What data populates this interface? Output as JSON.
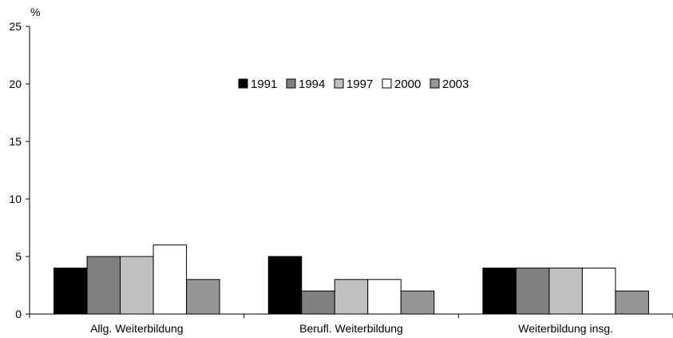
{
  "chart_data": {
    "type": "bar",
    "ylabel": "%",
    "ylim": [
      0,
      25
    ],
    "yticks": [
      0,
      5,
      10,
      15,
      20,
      25
    ],
    "grid": false,
    "legend_position": "top-center",
    "categories": [
      "Allg. Weiterbildung",
      "Berufl. Weiterbildung",
      "Weiterbildung insg."
    ],
    "series": [
      {
        "name": "1991",
        "color": "#000000",
        "values": [
          4,
          5,
          4
        ]
      },
      {
        "name": "1994",
        "color": "#808080",
        "values": [
          5,
          2,
          4
        ]
      },
      {
        "name": "1997",
        "color": "#c0c0c0",
        "values": [
          5,
          3,
          4
        ]
      },
      {
        "name": "2000",
        "color": "#ffffff",
        "values": [
          6,
          3,
          4
        ]
      },
      {
        "name": "2003",
        "color": "#969696",
        "values": [
          3,
          2,
          2
        ]
      }
    ]
  }
}
